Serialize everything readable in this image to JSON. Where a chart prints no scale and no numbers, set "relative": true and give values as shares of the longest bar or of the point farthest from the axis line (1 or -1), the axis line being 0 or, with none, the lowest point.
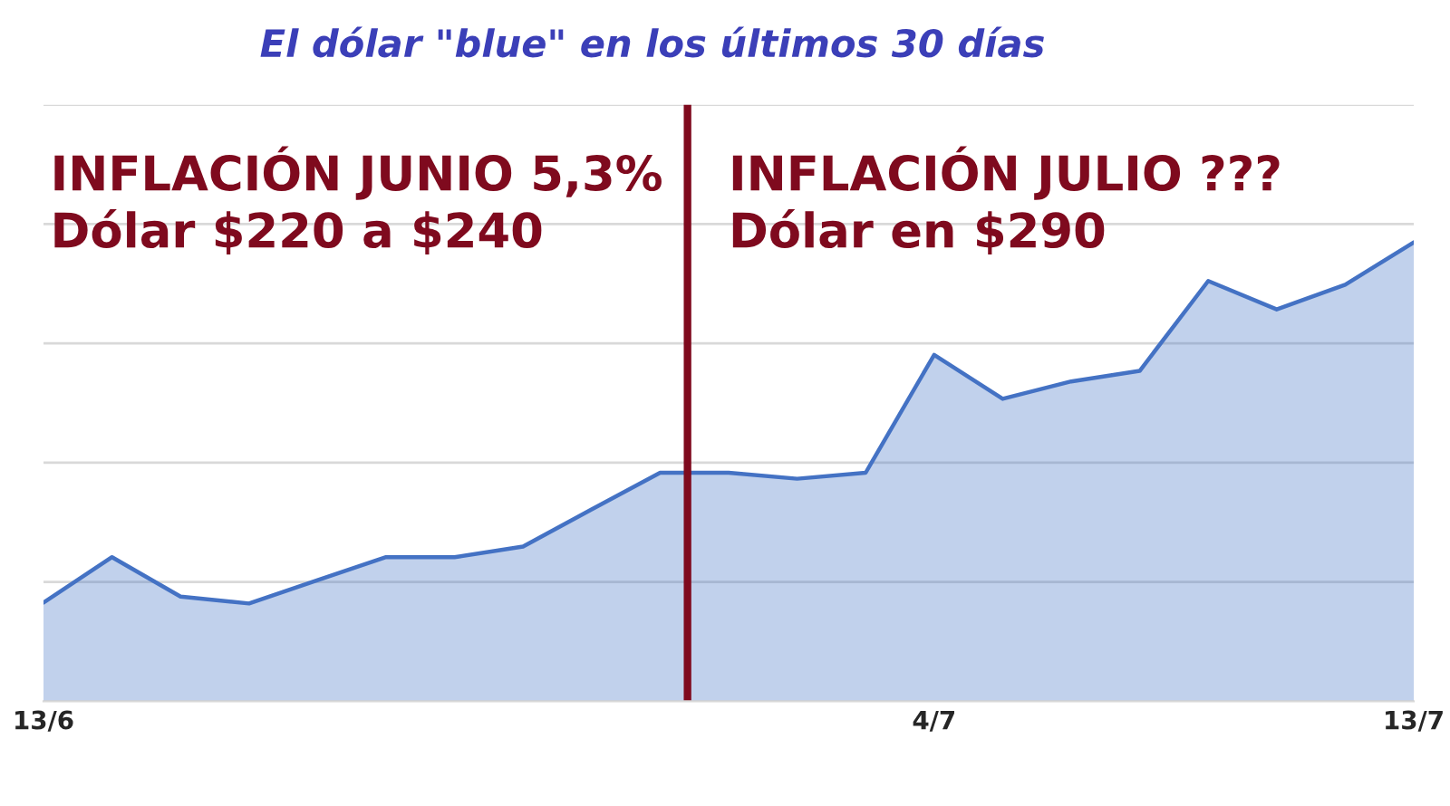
{
  "chart_data": {
    "type": "area",
    "title": "El dólar \"blue\" en los últimos 30 días",
    "categories": [
      "13/6",
      null,
      null,
      null,
      null,
      null,
      null,
      null,
      null,
      null,
      null,
      null,
      null,
      "4/7",
      null,
      null,
      null,
      null,
      null,
      null,
      "13/7"
    ],
    "series": [
      {
        "color": "#4472c4",
        "values": [
          0.215,
          0.314,
          0.228,
          0.213,
          0.264,
          0.314,
          0.314,
          0.337,
          0.418,
          0.498,
          0.498,
          0.485,
          0.498,
          0.755,
          0.659,
          0.697,
          0.72,
          0.916,
          0.854,
          0.908,
          1.0
        ]
      }
    ],
    "relative": true,
    "grid": "y",
    "annotations": [
      "INFLACIÓN JUNIO 5,3%\nDólar $220 a $240",
      "INFLACIÓN JULIO ???\nDólar en $290"
    ]
  }
}
